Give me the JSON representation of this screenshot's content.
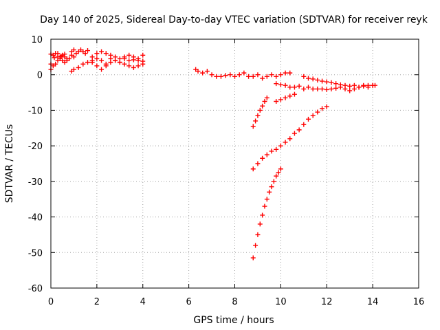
{
  "chart_data": {
    "type": "scatter",
    "title": "Day 140 of 2025, Sidereal Day-to-day VTEC variation (SDTVAR) for receiver reyk",
    "xlabel": "GPS time / hours",
    "ylabel": "SDTVAR / TECUs",
    "xlim": [
      0,
      16
    ],
    "ylim": [
      -60,
      10
    ],
    "xticks": [
      0,
      2,
      4,
      6,
      8,
      10,
      12,
      14,
      16
    ],
    "yticks": [
      -60,
      -50,
      -40,
      -30,
      -20,
      -10,
      0,
      10
    ],
    "grid": true,
    "legend": "none",
    "marker": "plus",
    "color": "#ff0000",
    "series": [
      {
        "x": [
          0.0,
          0.1,
          0.2,
          0.3,
          0.4,
          0.5,
          0.6,
          0.7,
          0.8,
          0.9,
          1.0,
          0.0,
          0.1,
          0.2,
          0.3,
          0.4,
          0.5,
          0.6,
          0.7,
          0.0,
          0.15,
          0.3,
          0.45,
          0.6
        ],
        "y": [
          3.0,
          5.5,
          6.0,
          5.0,
          4.5,
          5.5,
          5.0,
          4.0,
          4.5,
          5.5,
          5.0,
          1.5,
          2.5,
          3.0,
          4.0,
          5.0,
          4.0,
          3.5,
          4.5,
          5.8,
          4.8,
          6.0,
          5.2,
          5.8
        ]
      },
      {
        "x": [
          0.9,
          1.0,
          1.1,
          1.2,
          1.3,
          1.4,
          1.5,
          1.6
        ],
        "y": [
          6.5,
          7.0,
          6.0,
          6.5,
          7.0,
          6.5,
          6.0,
          6.8
        ]
      },
      {
        "x": [
          0.9,
          1.0,
          1.2,
          1.4,
          1.6,
          1.8,
          2.0,
          2.2,
          2.4,
          2.6,
          2.8,
          3.0,
          3.2,
          3.4,
          3.6,
          3.8,
          4.0
        ],
        "y": [
          1.0,
          1.5,
          2.0,
          3.0,
          3.5,
          4.0,
          4.5,
          4.0,
          3.0,
          4.5,
          4.0,
          3.5,
          4.5,
          4.0,
          4.2,
          4.0,
          3.8
        ]
      },
      {
        "x": [
          1.8,
          2.0,
          2.2,
          2.4,
          2.6,
          2.8,
          3.0,
          3.2,
          3.4,
          3.6,
          3.8,
          4.0
        ],
        "y": [
          5.0,
          6.0,
          6.5,
          6.0,
          5.5,
          5.0,
          4.5,
          5.0,
          5.5,
          5.0,
          4.5,
          5.5
        ]
      },
      {
        "x": [
          1.8,
          2.0,
          2.2,
          2.4,
          2.6,
          2.8,
          3.0,
          3.2,
          3.4,
          3.6,
          3.8,
          4.0
        ],
        "y": [
          3.5,
          2.5,
          1.5,
          2.5,
          3.5,
          4.0,
          3.5,
          3.0,
          2.5,
          2.0,
          2.5,
          3.0
        ]
      },
      {
        "x": [
          6.3,
          6.4,
          6.6,
          6.8,
          7.0,
          7.2,
          7.4,
          7.6,
          7.8,
          8.0,
          8.2,
          8.4,
          8.6,
          8.8,
          9.0,
          9.2,
          9.4,
          9.6,
          9.8,
          10.0,
          10.2,
          10.4
        ],
        "y": [
          1.5,
          1.0,
          0.5,
          1.0,
          0.0,
          -0.5,
          -0.5,
          -0.2,
          0.0,
          -0.5,
          0.0,
          0.5,
          -0.5,
          -0.5,
          0.0,
          -1.0,
          -0.5,
          0.0,
          -0.5,
          0.0,
          0.5,
          0.5
        ]
      },
      {
        "x": [
          11.0,
          11.2,
          11.4,
          11.6,
          11.8,
          12.0,
          12.2,
          12.4,
          12.6,
          12.8,
          13.0,
          13.2,
          13.4,
          13.6,
          13.8,
          14.0,
          14.1
        ],
        "y": [
          -0.5,
          -1.0,
          -1.2,
          -1.5,
          -1.8,
          -2.0,
          -2.2,
          -2.5,
          -2.8,
          -3.0,
          -3.2,
          -3.0,
          -3.5,
          -3.2,
          -3.0,
          -3.0,
          -3.0
        ]
      },
      {
        "x": [
          9.8,
          10.0,
          10.2,
          10.4,
          10.6,
          10.8,
          11.0,
          11.2,
          11.4,
          11.6,
          11.8,
          12.0,
          12.2,
          12.4,
          12.6,
          12.8,
          13.0,
          13.2,
          13.4,
          13.6,
          13.8,
          14.0
        ],
        "y": [
          -2.5,
          -2.8,
          -3.0,
          -3.5,
          -3.5,
          -3.2,
          -4.0,
          -3.5,
          -4.0,
          -4.0,
          -4.0,
          -4.2,
          -4.0,
          -3.8,
          -3.5,
          -4.0,
          -4.5,
          -4.0,
          -3.5,
          -3.0,
          -3.5,
          -3.0
        ]
      },
      {
        "x": [
          9.8,
          10.0,
          10.2,
          10.4,
          10.6
        ],
        "y": [
          -7.5,
          -7.0,
          -6.5,
          -6.0,
          -5.5
        ]
      },
      {
        "x": [
          8.8,
          8.9,
          9.0,
          9.1,
          9.2,
          9.3,
          9.4
        ],
        "y": [
          -14.5,
          -13.0,
          -11.5,
          -10.0,
          -8.8,
          -7.5,
          -6.5
        ]
      },
      {
        "x": [
          8.8,
          9.0,
          9.2,
          9.4,
          9.6,
          9.8,
          10.0,
          10.2,
          10.4,
          10.6,
          10.8,
          11.0,
          11.2,
          11.4,
          11.6,
          11.8,
          12.0
        ],
        "y": [
          -26.5,
          -25.0,
          -23.5,
          -22.5,
          -21.5,
          -21.0,
          -20.0,
          -19.0,
          -18.0,
          -16.5,
          -15.5,
          -14.0,
          -12.5,
          -11.5,
          -10.5,
          -9.5,
          -9.0
        ]
      },
      {
        "x": [
          8.8,
          8.9,
          9.0,
          9.1,
          9.2,
          9.3,
          9.4,
          9.5,
          9.6,
          9.7,
          9.8,
          9.9,
          10.0
        ],
        "y": [
          -51.5,
          -48.0,
          -45.0,
          -42.0,
          -39.5,
          -37.0,
          -35.0,
          -33.0,
          -31.5,
          -30.0,
          -28.5,
          -27.5,
          -26.5
        ]
      }
    ]
  }
}
